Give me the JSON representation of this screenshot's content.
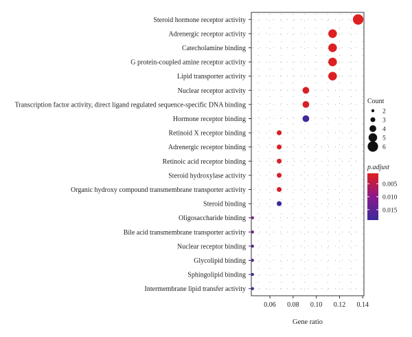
{
  "chart_data": {
    "type": "scatter",
    "xlabel": "Gene ratio",
    "xlim": [
      0.044,
      0.141
    ],
    "xticks": [
      0.06,
      0.08,
      0.1,
      0.12,
      0.14
    ],
    "xtick_labels": [
      "0.06",
      "0.08",
      "0.10",
      "0.12",
      "0.14"
    ],
    "grid": true,
    "categories": [
      "Steroid hormone receptor activity",
      "Adrenergic receptor activity",
      "Catecholamine binding",
      "G protein-coupled amine receptor activity",
      "Lipid transporter activity",
      "Nuclear receptor activity",
      "Transcription factor activity, direct ligand regulated sequence-specific DNA binding",
      "Hormone receptor binding",
      "Retinoid X receptor binding",
      "Adrenergic receptor binding",
      "Retinoic acid receptor binding",
      "Steroid hydroxylase activity",
      "Organic hydroxy compound transmembrane transporter activity",
      "Steroid binding",
      "Oligosaccharide binding",
      "Bile acid transmembrane transporter activity",
      "Nuclear receptor binding",
      "Glycolipid binding",
      "Sphingolipid binding",
      "Intermembrane lipid transfer activity"
    ],
    "gene_ratio": [
      0.136,
      0.114,
      0.114,
      0.114,
      0.114,
      0.091,
      0.091,
      0.091,
      0.068,
      0.068,
      0.068,
      0.068,
      0.068,
      0.068,
      0.045,
      0.045,
      0.045,
      0.045,
      0.045,
      0.045
    ],
    "count": [
      6,
      5,
      5,
      5,
      5,
      4,
      4,
      4,
      3,
      3,
      3,
      3,
      3,
      3,
      2,
      2,
      2,
      2,
      2,
      2
    ],
    "p_adjust": [
      0.0012,
      0.0013,
      0.0013,
      0.0014,
      0.0015,
      0.0018,
      0.0018,
      0.018,
      0.0016,
      0.0017,
      0.0017,
      0.002,
      0.0021,
      0.019,
      0.011,
      0.014,
      0.017,
      0.017,
      0.018,
      0.018
    ],
    "size_legend": {
      "title": "Count",
      "values": [
        2,
        3,
        4,
        5,
        6
      ],
      "labels": [
        "2",
        "3",
        "4",
        "5",
        "6"
      ]
    },
    "color_legend": {
      "title": "p.adjust",
      "range": [
        0.001,
        0.019
      ],
      "ticks": [
        0.005,
        0.01,
        0.015
      ],
      "tick_labels": [
        "0.005",
        "0.010",
        "0.015"
      ],
      "low_color": "#e0201e",
      "mid_color": "#8a1a8a",
      "high_color": "#3a2a9a"
    },
    "legend_position": "right"
  }
}
